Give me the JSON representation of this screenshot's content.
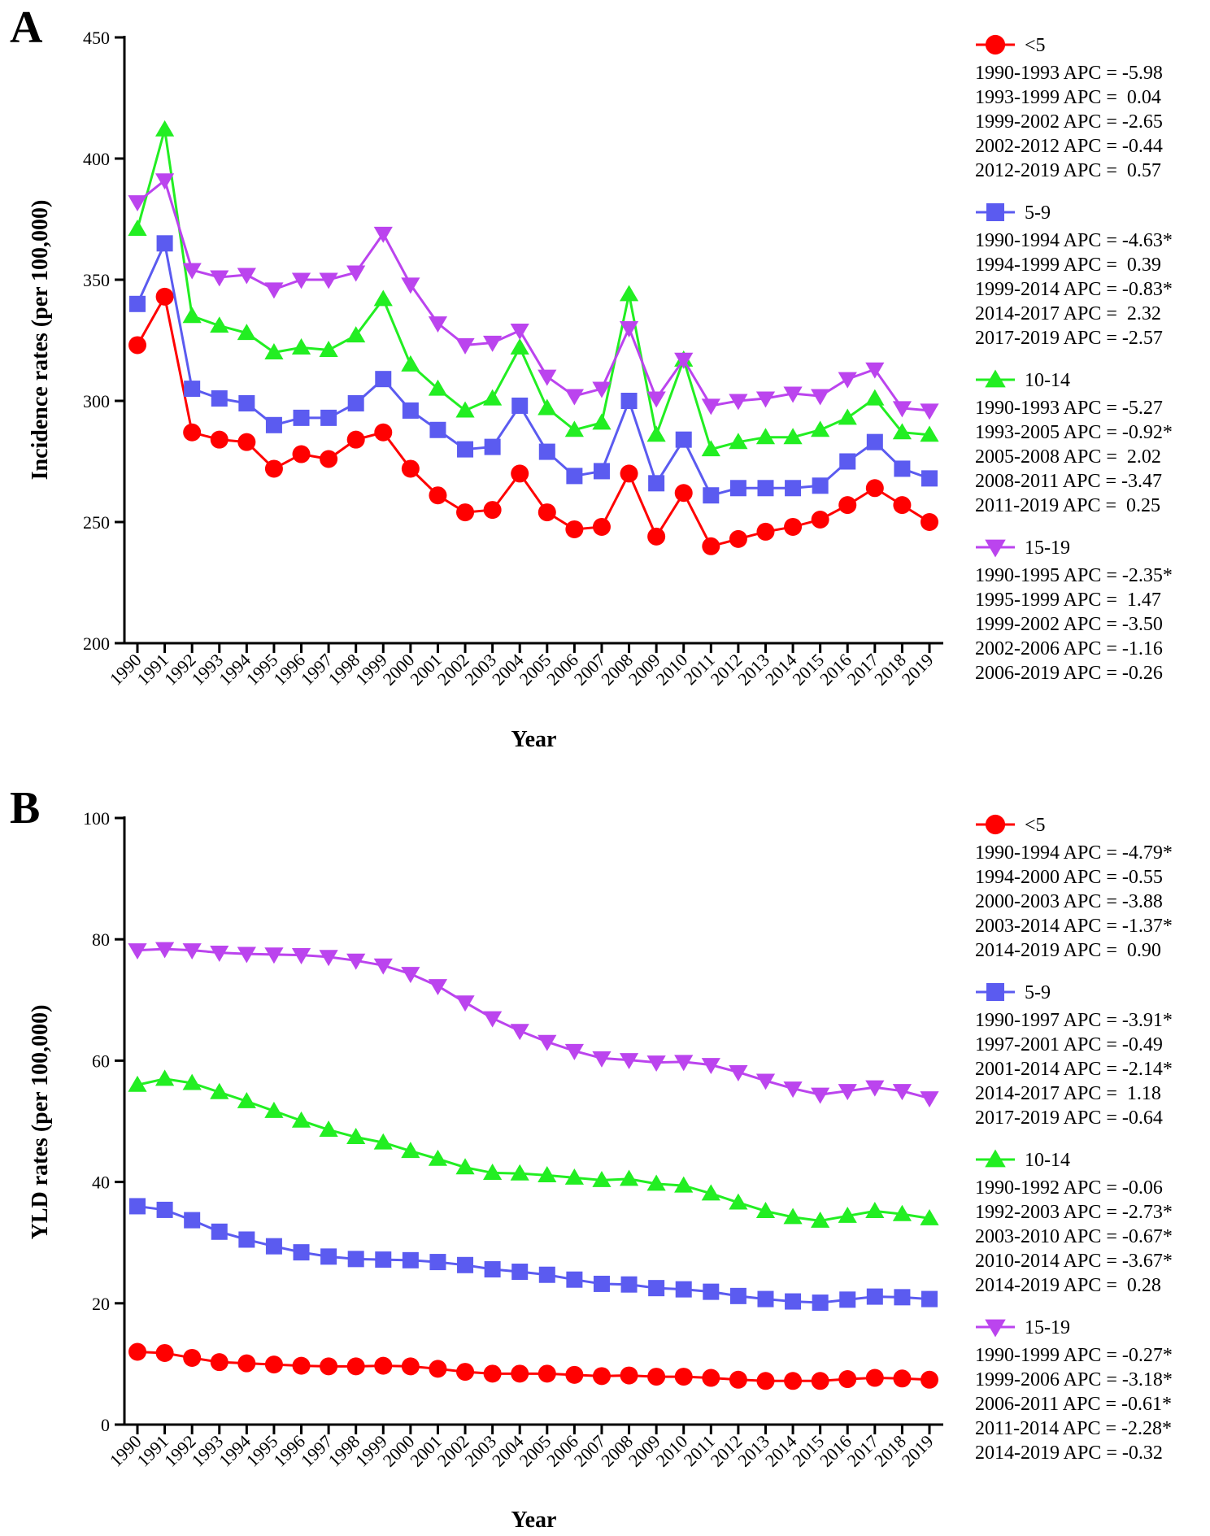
{
  "colors": {
    "lt5": "#ff0000",
    "5to9": "#5b5bf0",
    "10to14": "#22ee22",
    "15to19": "#bb44ee"
  },
  "chart_data": [
    {
      "type": "line",
      "panel_label": "A",
      "title": "",
      "xlabel": "Year",
      "ylabel": "Incidence rates (per 100,000)",
      "ylim": [
        200,
        450
      ],
      "yticks": [
        "200",
        "250",
        "300",
        "350",
        "400",
        "450"
      ],
      "categories": [
        "1990",
        "1991",
        "1992",
        "1993",
        "1994",
        "1995",
        "1996",
        "1997",
        "1998",
        "1999",
        "2000",
        "2001",
        "2002",
        "2003",
        "2004",
        "2005",
        "2006",
        "2007",
        "2008",
        "2009",
        "2010",
        "2011",
        "2012",
        "2013",
        "2014",
        "2015",
        "2016",
        "2017",
        "2018",
        "2019"
      ],
      "series": [
        {
          "name": "<5",
          "key": "lt5",
          "marker": "circle",
          "values": [
            323,
            343,
            287,
            284,
            283,
            272,
            278,
            276,
            284,
            287,
            272,
            261,
            254,
            255,
            270,
            254,
            247,
            248,
            270,
            244,
            262,
            240,
            243,
            246,
            248,
            251,
            257,
            264,
            257,
            250
          ],
          "apc": [
            "1990-1993 APC = -5.98",
            "1993-1999 APC =  0.04",
            "1999-2002 APC = -2.65",
            "2002-2012 APC = -0.44",
            "2012-2019 APC =  0.57"
          ]
        },
        {
          "name": "5-9",
          "key": "5to9",
          "marker": "square",
          "values": [
            340,
            365,
            305,
            301,
            299,
            290,
            293,
            293,
            299,
            309,
            296,
            288,
            280,
            281,
            298,
            279,
            269,
            271,
            300,
            266,
            284,
            261,
            264,
            264,
            264,
            265,
            275,
            283,
            272,
            268
          ],
          "apc": [
            "1990-1994 APC = -4.63*",
            "1994-1999 APC =  0.39",
            "1999-2014 APC = -0.83*",
            "2014-2017 APC =  2.32",
            "2017-2019 APC = -2.57"
          ]
        },
        {
          "name": "10-14",
          "key": "10to14",
          "marker": "triangle-up",
          "values": [
            371,
            412,
            335,
            331,
            328,
            320,
            322,
            321,
            327,
            342,
            315,
            305,
            296,
            301,
            322,
            297,
            288,
            291,
            344,
            286,
            317,
            280,
            283,
            285,
            285,
            288,
            293,
            301,
            287,
            286
          ],
          "apc": [
            "1990-1993 APC = -5.27",
            "1993-2005 APC = -0.92*",
            "2005-2008 APC =  2.02",
            "2008-2011 APC = -3.47",
            "2011-2019 APC =  0.25"
          ]
        },
        {
          "name": "15-19",
          "key": "15to19",
          "marker": "triangle-down",
          "values": [
            382,
            391,
            354,
            351,
            352,
            346,
            350,
            350,
            353,
            369,
            348,
            332,
            323,
            324,
            329,
            310,
            302,
            305,
            330,
            301,
            317,
            298,
            300,
            301,
            303,
            302,
            309,
            313,
            297,
            296
          ],
          "apc": [
            "1990-1995 APC = -2.35*",
            "1995-1999 APC =  1.47",
            "1999-2002 APC = -3.50",
            "2002-2006 APC = -1.16",
            "2006-2019 APC = -0.26"
          ]
        }
      ]
    },
    {
      "type": "line",
      "panel_label": "B",
      "title": "",
      "xlabel": "Year",
      "ylabel": "YLD rates (per 100,000)",
      "ylim": [
        0,
        100
      ],
      "yticks": [
        "0",
        "20",
        "40",
        "60",
        "80",
        "100"
      ],
      "categories": [
        "1990",
        "1991",
        "1992",
        "1993",
        "1994",
        "1995",
        "1996",
        "1997",
        "1998",
        "1999",
        "2000",
        "2001",
        "2002",
        "2003",
        "2004",
        "2005",
        "2006",
        "2007",
        "2008",
        "2009",
        "2010",
        "2011",
        "2012",
        "2013",
        "2014",
        "2015",
        "2016",
        "2017",
        "2018",
        "2019"
      ],
      "series": [
        {
          "name": "<5",
          "key": "lt5",
          "marker": "circle",
          "values": [
            12,
            11.8,
            11,
            10.3,
            10.1,
            9.9,
            9.7,
            9.6,
            9.6,
            9.7,
            9.6,
            9.2,
            8.7,
            8.4,
            8.4,
            8.4,
            8.2,
            8.0,
            8.1,
            7.9,
            7.9,
            7.7,
            7.4,
            7.2,
            7.2,
            7.2,
            7.5,
            7.7,
            7.6,
            7.4
          ],
          "apc": [
            "1990-1994 APC = -4.79*",
            "1994-2000 APC = -0.55",
            "2000-2003 APC = -3.88",
            "2003-2014 APC = -1.37*",
            "2014-2019 APC =  0.90"
          ]
        },
        {
          "name": "5-9",
          "key": "5to9",
          "marker": "square",
          "values": [
            36,
            35.4,
            33.7,
            31.8,
            30.5,
            29.4,
            28.4,
            27.7,
            27.3,
            27.2,
            27.1,
            26.8,
            26.3,
            25.6,
            25.2,
            24.7,
            23.9,
            23.2,
            23.1,
            22.5,
            22.3,
            21.9,
            21.2,
            20.7,
            20.3,
            20.1,
            20.6,
            21.1,
            21,
            20.7
          ],
          "apc": [
            "1990-1997 APC = -3.91*",
            "1997-2001 APC = -0.49",
            "2001-2014 APC = -2.14*",
            "2014-2017 APC =  1.18",
            "2017-2019 APC = -0.64"
          ]
        },
        {
          "name": "10-14",
          "key": "10to14",
          "marker": "triangle-up",
          "values": [
            56,
            57,
            56.3,
            54.8,
            53.3,
            51.7,
            50.1,
            48.6,
            47.4,
            46.5,
            45.1,
            43.8,
            42.4,
            41.5,
            41.4,
            41.1,
            40.7,
            40.3,
            40.5,
            39.7,
            39.4,
            38.1,
            36.6,
            35.2,
            34.2,
            33.6,
            34.4,
            35.2,
            34.7,
            34.0
          ],
          "apc": [
            "1990-1992 APC = -0.06",
            "1992-2003 APC = -2.73*",
            "2003-2010 APC = -0.67*",
            "2010-2014 APC = -3.67*",
            "2014-2019 APC =  0.28"
          ]
        },
        {
          "name": "15-19",
          "key": "15to19",
          "marker": "triangle-down",
          "values": [
            78.2,
            78.4,
            78.2,
            77.8,
            77.6,
            77.5,
            77.4,
            77.1,
            76.5,
            75.7,
            74.3,
            72.3,
            69.6,
            67,
            64.9,
            63.1,
            61.6,
            60.4,
            60.1,
            59.7,
            59.8,
            59.3,
            58.1,
            56.7,
            55.4,
            54.4,
            55,
            55.6,
            55,
            53.8
          ],
          "apc": [
            "1990-1999 APC = -0.27*",
            "1999-2006 APC = -3.18*",
            "2006-2011 APC = -0.61*",
            "2011-2014 APC = -2.28*",
            "2014-2019 APC = -0.32"
          ]
        }
      ]
    }
  ]
}
